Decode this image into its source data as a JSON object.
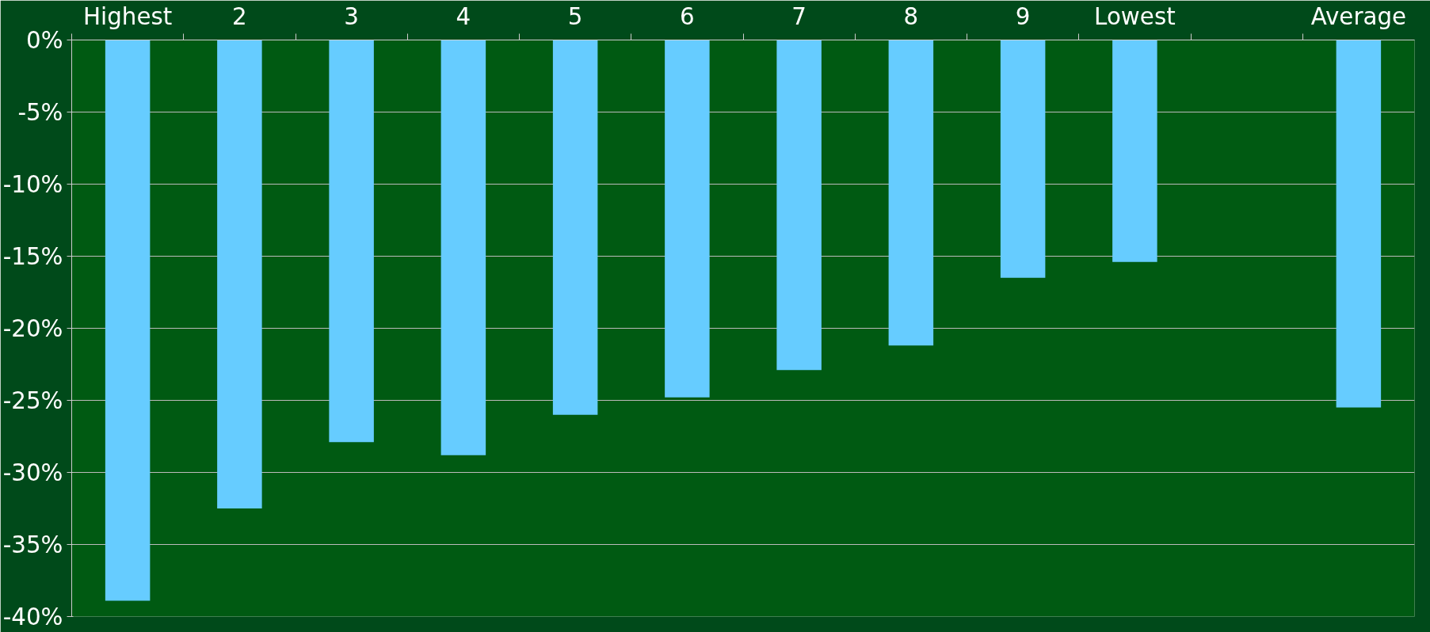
{
  "chart_data": {
    "type": "bar",
    "categories": [
      "Highest",
      "2",
      "3",
      "4",
      "5",
      "6",
      "7",
      "8",
      "9",
      "Lowest",
      null,
      "Average"
    ],
    "values": [
      -38.9,
      -32.5,
      -27.9,
      -28.8,
      -26.0,
      -24.8,
      -22.9,
      -21.2,
      -16.5,
      -15.4,
      null,
      -25.5
    ],
    "color": "#66ccff",
    "ylim": [
      -40,
      0
    ],
    "yticks": [
      {
        "value": 0,
        "label": "0%"
      },
      {
        "value": -5,
        "label": "-5%"
      },
      {
        "value": -10,
        "label": "-10%"
      },
      {
        "value": -15,
        "label": "-15%"
      },
      {
        "value": -20,
        "label": "-20%"
      },
      {
        "value": -25,
        "label": "-25%"
      },
      {
        "value": -30,
        "label": "-30%"
      },
      {
        "value": -35,
        "label": "-35%"
      },
      {
        "value": -40,
        "label": "-40%"
      }
    ],
    "grid": "y"
  }
}
